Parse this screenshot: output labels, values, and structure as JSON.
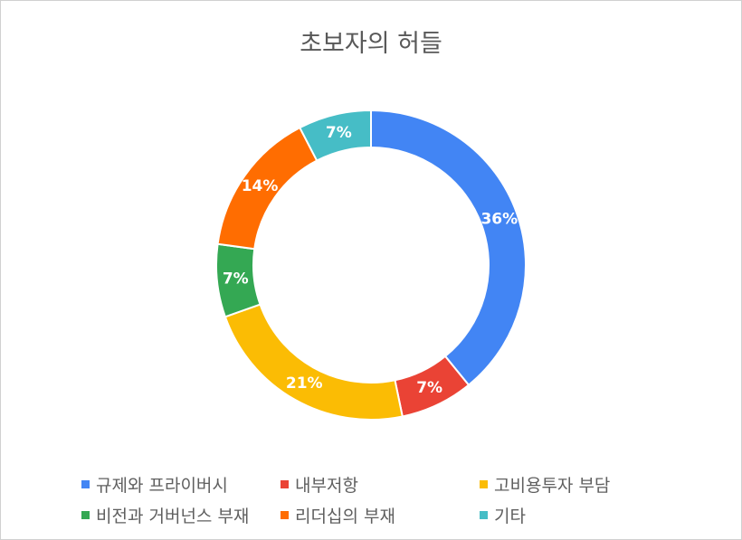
{
  "chart_data": {
    "type": "pie",
    "subtype": "donut",
    "title": "초보자의 허들",
    "categories": [
      "규제와 프라이버시",
      "내부저항",
      "고비용투자 부담",
      "비전과 거버넌스 부재",
      "리더십의 부재",
      "기타"
    ],
    "values": [
      36,
      7,
      21,
      7,
      14,
      7
    ],
    "data_labels": [
      "36%",
      "7%",
      "21%",
      "7%",
      "14%",
      "7%"
    ],
    "colors": [
      "#4285F4",
      "#EA4335",
      "#FBBC04",
      "#34A853",
      "#FF6D01",
      "#46BDC6"
    ],
    "legend_position": "bottom"
  }
}
